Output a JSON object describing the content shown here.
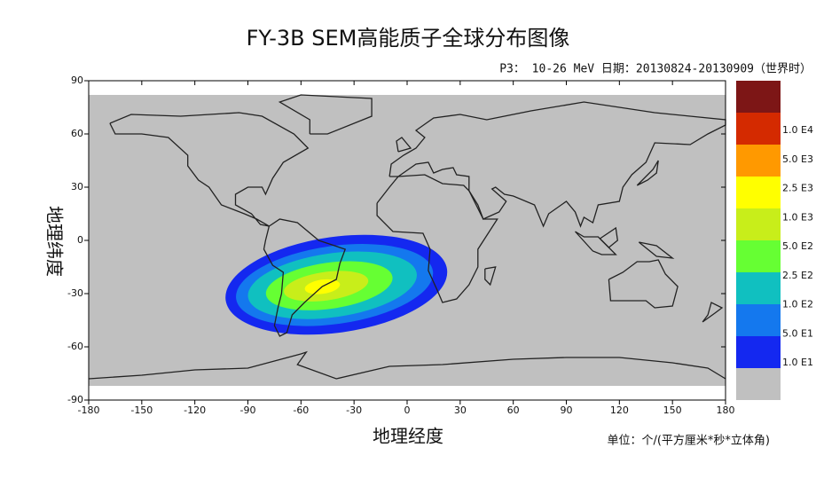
{
  "chart_data": {
    "type": "map",
    "title": "FY-3B SEM高能质子全球分布图像",
    "subtitle": "P3： 10-26 MeV  日期：20130824-20130909（世界时）",
    "xlabel": "地理经度",
    "ylabel": "地理纬度",
    "unit": "单位：个/(平方厘米*秒*立体角)",
    "xlim": [
      -180,
      180
    ],
    "ylim": [
      -90,
      90
    ],
    "xticks": [
      -180,
      -150,
      -120,
      -90,
      -60,
      -30,
      0,
      30,
      60,
      90,
      120,
      150,
      180
    ],
    "yticks": [
      -90,
      -60,
      -30,
      0,
      30,
      60,
      90
    ],
    "colorbar": {
      "colors": [
        "#7d1616",
        "#d42a00",
        "#ff9900",
        "#ffff00",
        "#c8ee1a",
        "#66ff33",
        "#10c0c0",
        "#1478ee",
        "#1428f0",
        "#c0c0c0"
      ],
      "ticks": [
        {
          "value": 10000,
          "label": "1.0 E4"
        },
        {
          "value": 5000,
          "label": "5.0 E3"
        },
        {
          "value": 2500,
          "label": "2.5 E3"
        },
        {
          "value": 1000,
          "label": "1.0 E3"
        },
        {
          "value": 500,
          "label": "5.0 E2"
        },
        {
          "value": 250,
          "label": "2.5 E2"
        },
        {
          "value": 100,
          "label": "1.0 E2"
        },
        {
          "value": 50,
          "label": "5.0 E1"
        },
        {
          "value": 10,
          "label": "1.0 E1"
        }
      ]
    }
  }
}
